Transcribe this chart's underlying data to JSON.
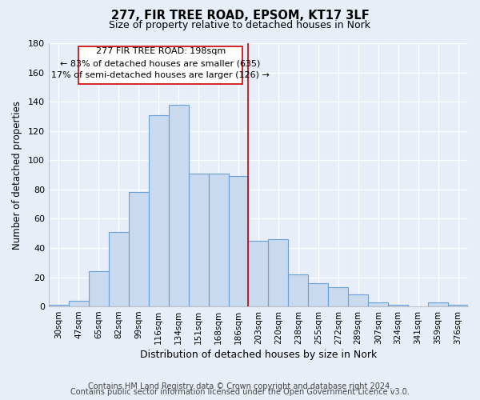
{
  "title": "277, FIR TREE ROAD, EPSOM, KT17 3LF",
  "subtitle": "Size of property relative to detached houses in Nork",
  "xlabel": "Distribution of detached houses by size in Nork",
  "ylabel": "Number of detached properties",
  "footer1": "Contains HM Land Registry data © Crown copyright and database right 2024.",
  "footer2": "Contains public sector information licensed under the Open Government Licence v3.0.",
  "annotation_line1": "277 FIR TREE ROAD: 198sqm",
  "annotation_line2": "← 83% of detached houses are smaller (635)",
  "annotation_line3": "17% of semi-detached houses are larger (126) →",
  "categories": [
    "30sqm",
    "47sqm",
    "65sqm",
    "82sqm",
    "99sqm",
    "116sqm",
    "134sqm",
    "151sqm",
    "168sqm",
    "186sqm",
    "203sqm",
    "220sqm",
    "238sqm",
    "255sqm",
    "272sqm",
    "289sqm",
    "307sqm",
    "324sqm",
    "341sqm",
    "359sqm",
    "376sqm"
  ],
  "values": [
    1,
    4,
    24,
    51,
    78,
    131,
    138,
    91,
    91,
    89,
    45,
    46,
    22,
    16,
    13,
    8,
    3,
    1,
    0,
    3,
    1
  ],
  "bar_color": "#c9d9ee",
  "bar_edge_color": "#6a9fd8",
  "vline_color": "#cc0000",
  "vline_x_index": 10,
  "annotation_box_edge": "#cc0000",
  "background_color": "#e8eef8",
  "grid_color": "#ffffff",
  "ylim": [
    0,
    180
  ],
  "yticks": [
    0,
    20,
    40,
    60,
    80,
    100,
    120,
    140,
    160,
    180
  ]
}
